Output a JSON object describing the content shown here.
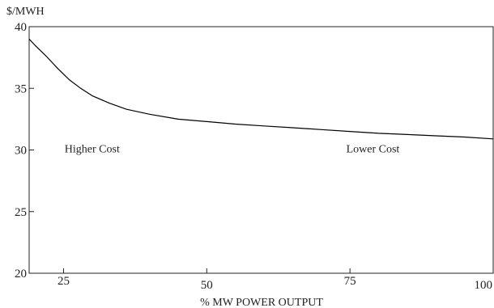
{
  "chart_data": {
    "type": "line",
    "title": "",
    "xlabel": "% MW POWER OUTPUT",
    "ylabel": "$/MWH",
    "xlim": [
      19,
      100
    ],
    "ylim": [
      20,
      40
    ],
    "xticks": [
      25,
      50,
      75,
      100
    ],
    "yticks": [
      20,
      25,
      30,
      35,
      40
    ],
    "grid": false,
    "series": [
      {
        "x": [
          19,
          20,
          22,
          24,
          26,
          28,
          30,
          33,
          36,
          40,
          45,
          50,
          55,
          60,
          65,
          70,
          75,
          80,
          85,
          90,
          95,
          100
        ],
        "y": [
          39.0,
          38.5,
          37.6,
          36.6,
          35.7,
          35.0,
          34.4,
          33.8,
          33.3,
          32.9,
          32.5,
          32.3,
          32.1,
          31.95,
          31.8,
          31.65,
          31.5,
          31.35,
          31.25,
          31.15,
          31.05,
          30.9
        ]
      }
    ],
    "annotations": [
      {
        "text": "Higher Cost",
        "x": 30,
        "y": 29.8
      },
      {
        "text": "Lower Cost",
        "x": 79,
        "y": 29.8
      }
    ],
    "line_color": "#000000"
  }
}
